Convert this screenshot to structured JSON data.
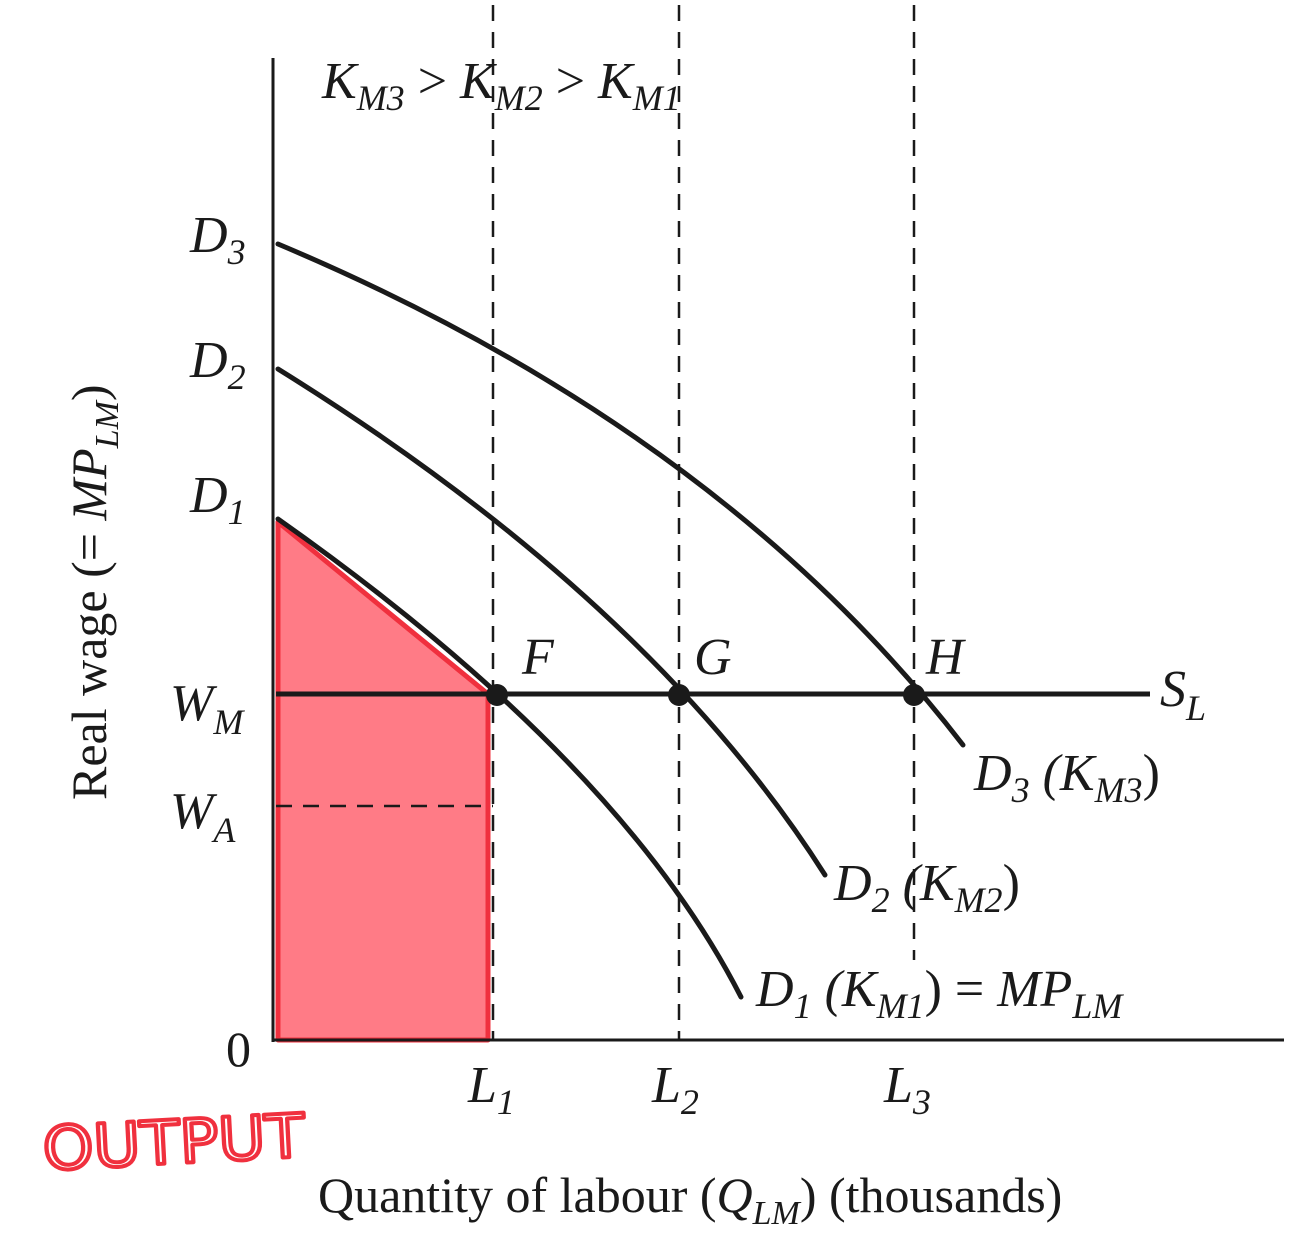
{
  "diagram": {
    "condition": {
      "k": "K",
      "m3": "M3",
      "gt1": " > ",
      "m2": "M2",
      "gt2": " > ",
      "m1": "M1"
    },
    "y_axis": {
      "label_pre": "Real wage (= ",
      "mp": "MP",
      "sub": "LM",
      "label_post": ")",
      "ticks": [
        {
          "main": "D",
          "sub": "3"
        },
        {
          "main": "D",
          "sub": "2"
        },
        {
          "main": "D",
          "sub": "1"
        },
        {
          "main": "W",
          "sub": "M"
        },
        {
          "main": "W",
          "sub": "A"
        },
        {
          "main": "0",
          "sub": ""
        }
      ]
    },
    "x_axis": {
      "label_pre": "Quantity of labour (",
      "q": "Q",
      "sub": "LM",
      "label_post": ") (thousands)",
      "ticks": [
        {
          "main": "L",
          "sub": "1"
        },
        {
          "main": "L",
          "sub": "2"
        },
        {
          "main": "L",
          "sub": "3"
        }
      ]
    },
    "points": [
      "F",
      "G",
      "H"
    ],
    "supply": {
      "main": "S",
      "sub": "L"
    },
    "curves": [
      {
        "d": "D",
        "n": "3",
        "open": " (K",
        "sub": "M3",
        "close": ")",
        "extra": "",
        "extra_sub": ""
      },
      {
        "d": "D",
        "n": "2",
        "open": " (K",
        "sub": "M2",
        "close": ")",
        "extra": "",
        "extra_sub": ""
      },
      {
        "d": "D",
        "n": "1",
        "open": " (K",
        "sub": "M1",
        "close": ") = ",
        "extra": "MP",
        "extra_sub": "LM"
      }
    ],
    "annotation": "OUTPUT",
    "colors": {
      "shade_fill": "#ff7b86",
      "shade_stroke": "#f0303e",
      "ink": "#1a1a1a"
    }
  }
}
